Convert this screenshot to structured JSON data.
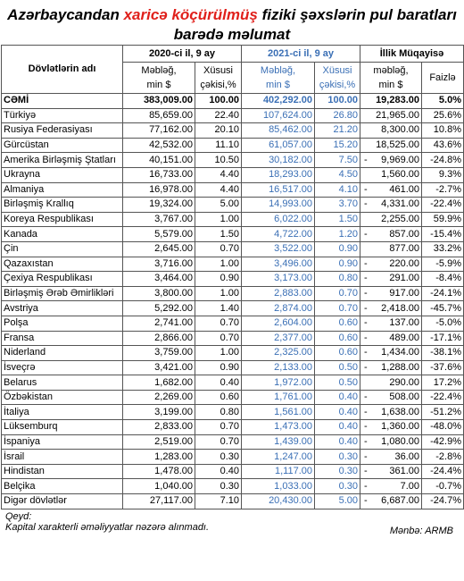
{
  "header": {
    "title": {
      "before": "Azərbaycandan",
      "highlight": "xaricə köçürülmüş",
      "after": "fiziki şəxslərin pul baratları barədə məlumat"
    }
  },
  "table": {
    "name_header": "Dövlətlərin adı",
    "groups": [
      "2020-ci il, 9 ay",
      "2021-ci il, 9 ay",
      "İllik Müqayisə"
    ],
    "subheaders": [
      [
        "Məbləğ,",
        "min $"
      ],
      [
        "Xüsusi",
        "çəkisi,%"
      ],
      [
        "Məbləğ,",
        "min $"
      ],
      [
        "Xüsusi",
        "çəkisi,%"
      ],
      [
        "məbləğ,",
        "min $"
      ],
      [
        "Faizlə"
      ]
    ],
    "rows": [
      [
        "CƏMİ",
        "383,009.00",
        "100.00",
        "402,292.00",
        "100.00",
        {
          "sign": "",
          "amount": "19,283.00"
        },
        "5.0%"
      ],
      [
        "Türkiyə",
        "85,659.00",
        "22.40",
        "107,624.00",
        "26.80",
        {
          "sign": "",
          "amount": "21,965.00"
        },
        "25.6%"
      ],
      [
        "Rusiya Federasiyası",
        "77,162.00",
        "20.10",
        "85,462.00",
        "21.20",
        {
          "sign": "",
          "amount": "8,300.00"
        },
        "10.8%"
      ],
      [
        "Gürcüstan",
        "42,532.00",
        "11.10",
        "61,057.00",
        "15.20",
        {
          "sign": "",
          "amount": "18,525.00"
        },
        "43.6%"
      ],
      [
        "Amerika Birləşmiş Ştatları",
        "40,151.00",
        "10.50",
        "30,182.00",
        "7.50",
        {
          "sign": "-",
          "amount": "9,969.00"
        },
        "-24.8%"
      ],
      [
        "Ukrayna",
        "16,733.00",
        "4.40",
        "18,293.00",
        "4.50",
        {
          "sign": "",
          "amount": "1,560.00"
        },
        "9.3%"
      ],
      [
        "Almaniya",
        "16,978.00",
        "4.40",
        "16,517.00",
        "4.10",
        {
          "sign": "-",
          "amount": "461.00"
        },
        "-2.7%"
      ],
      [
        "Birləşmiş Krallıq",
        "19,324.00",
        "5.00",
        "14,993.00",
        "3.70",
        {
          "sign": "-",
          "amount": "4,331.00"
        },
        "-22.4%"
      ],
      [
        "Koreya Respublikası",
        "3,767.00",
        "1.00",
        "6,022.00",
        "1.50",
        {
          "sign": "",
          "amount": "2,255.00"
        },
        "59.9%"
      ],
      [
        "Kanada",
        "5,579.00",
        "1.50",
        "4,722.00",
        "1.20",
        {
          "sign": "-",
          "amount": "857.00"
        },
        "-15.4%"
      ],
      [
        "Çin",
        "2,645.00",
        "0.70",
        "3,522.00",
        "0.90",
        {
          "sign": "",
          "amount": "877.00"
        },
        "33.2%"
      ],
      [
        "Qazaxıstan",
        "3,716.00",
        "1.00",
        "3,496.00",
        "0.90",
        {
          "sign": "-",
          "amount": "220.00"
        },
        "-5.9%"
      ],
      [
        "Çexiya Respublikası",
        "3,464.00",
        "0.90",
        "3,173.00",
        "0.80",
        {
          "sign": "-",
          "amount": "291.00"
        },
        "-8.4%"
      ],
      [
        "Birləşmiş Ərəb Əmirlikləri",
        "3,800.00",
        "1.00",
        "2,883.00",
        "0.70",
        {
          "sign": "-",
          "amount": "917.00"
        },
        "-24.1%"
      ],
      [
        "Avstriya",
        "5,292.00",
        "1.40",
        "2,874.00",
        "0.70",
        {
          "sign": "-",
          "amount": "2,418.00"
        },
        "-45.7%"
      ],
      [
        "Polşa",
        "2,741.00",
        "0.70",
        "2,604.00",
        "0.60",
        {
          "sign": "-",
          "amount": "137.00"
        },
        "-5.0%"
      ],
      [
        "Fransa",
        "2,866.00",
        "0.70",
        "2,377.00",
        "0.60",
        {
          "sign": "-",
          "amount": "489.00"
        },
        "-17.1%"
      ],
      [
        "Niderland",
        "3,759.00",
        "1.00",
        "2,325.00",
        "0.60",
        {
          "sign": "-",
          "amount": "1,434.00"
        },
        "-38.1%"
      ],
      [
        "İsveçrə",
        "3,421.00",
        "0.90",
        "2,133.00",
        "0.50",
        {
          "sign": "-",
          "amount": "1,288.00"
        },
        "-37.6%"
      ],
      [
        "Belarus",
        "1,682.00",
        "0.40",
        "1,972.00",
        "0.50",
        {
          "sign": "",
          "amount": "290.00"
        },
        "17.2%"
      ],
      [
        "Özbəkistan",
        "2,269.00",
        "0.60",
        "1,761.00",
        "0.40",
        {
          "sign": "-",
          "amount": "508.00"
        },
        "-22.4%"
      ],
      [
        "İtaliya",
        "3,199.00",
        "0.80",
        "1,561.00",
        "0.40",
        {
          "sign": "-",
          "amount": "1,638.00"
        },
        "-51.2%"
      ],
      [
        "Lüksemburq",
        "2,833.00",
        "0.70",
        "1,473.00",
        "0.40",
        {
          "sign": "-",
          "amount": "1,360.00"
        },
        "-48.0%"
      ],
      [
        "İspaniya",
        "2,519.00",
        "0.70",
        "1,439.00",
        "0.40",
        {
          "sign": "-",
          "amount": "1,080.00"
        },
        "-42.9%"
      ],
      [
        "İsrail",
        "1,283.00",
        "0.30",
        "1,247.00",
        "0.30",
        {
          "sign": "-",
          "amount": "36.00"
        },
        "-2.8%"
      ],
      [
        "Hindistan",
        "1,478.00",
        "0.40",
        "1,117.00",
        "0.30",
        {
          "sign": "-",
          "amount": "361.00"
        },
        "-24.4%"
      ],
      [
        "Belçika",
        "1,040.00",
        "0.30",
        "1,033.00",
        "0.30",
        {
          "sign": "-",
          "amount": "7.00"
        },
        "-0.7%"
      ],
      [
        "Digər dövlətlər",
        "27,117.00",
        "7.10",
        "20,430.00",
        "5.00",
        {
          "sign": "-",
          "amount": "6,687.00"
        },
        "-24.7%"
      ]
    ]
  },
  "footer": {
    "note_label": "Qeyd:",
    "note": "Kapital xarakterli əməliyyatlar nəzərə alınmadı.",
    "source": "Mənbə: ARMB"
  }
}
